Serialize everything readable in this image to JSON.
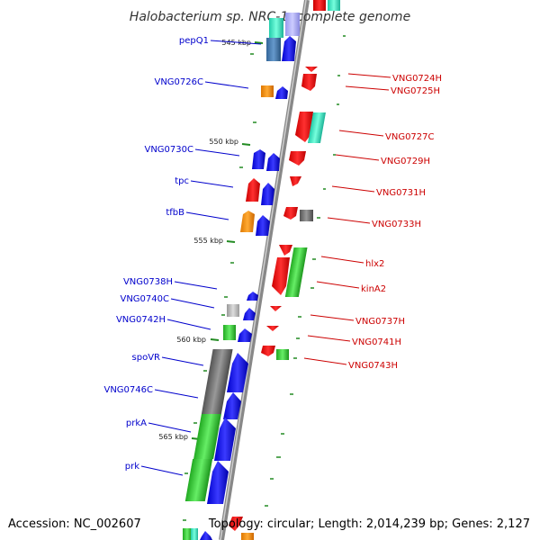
{
  "title": "Halobacterium sp. NRC-1, complete genome",
  "footer": {
    "accession": "Accession: NC_002607",
    "topology": "Topology: circular; Length: 2,014,239 bp; Genes: 2,127"
  },
  "colors": {
    "left_label": "#0000cc",
    "right_label": "#cc0000",
    "backbone": "#888888",
    "tick": "#228b22"
  },
  "scale_ticks": [
    {
      "label": "545 kbp"
    },
    {
      "label": "550 kbp"
    },
    {
      "label": "555 kbp"
    },
    {
      "label": "560 kbp"
    },
    {
      "label": "565 kbp"
    }
  ],
  "left_genes": [
    {
      "label": "pepQ1"
    },
    {
      "label": "VNG0726C"
    },
    {
      "label": "VNG0730C"
    },
    {
      "label": "tpc"
    },
    {
      "label": "tfbB"
    },
    {
      "label": "VNG0738H"
    },
    {
      "label": "VNG0740C"
    },
    {
      "label": "VNG0742H"
    },
    {
      "label": "spoVR"
    },
    {
      "label": "VNG0746C"
    },
    {
      "label": "prkA"
    },
    {
      "label": "prk"
    }
  ],
  "right_genes": [
    {
      "label": "VNG0724H"
    },
    {
      "label": "VNG0725H"
    },
    {
      "label": "VNG0727C"
    },
    {
      "label": "VNG0729H"
    },
    {
      "label": "VNG0731H"
    },
    {
      "label": "VNG0733H"
    },
    {
      "label": "hlx2"
    },
    {
      "label": "kinA2"
    },
    {
      "label": "VNG0737H"
    },
    {
      "label": "VNG0741H"
    },
    {
      "label": "VNG0743H"
    }
  ]
}
